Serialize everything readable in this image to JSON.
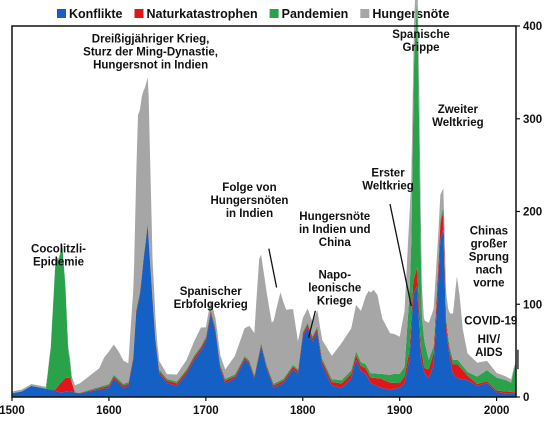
{
  "chart_data": {
    "type": "area",
    "stacked": true,
    "x_range": [
      1500,
      2020
    ],
    "y_range": [
      0,
      400
    ],
    "x_ticks": [
      "1500",
      "1600",
      "1700",
      "1800",
      "1900",
      "2000"
    ],
    "y_ticks": [
      "0",
      "100",
      "200",
      "300",
      "400"
    ],
    "legend_position": "top",
    "series": [
      {
        "name": "Konflikte",
        "color": "#1560c4",
        "points": [
          [
            1500,
            4
          ],
          [
            1510,
            6
          ],
          [
            1520,
            12
          ],
          [
            1530,
            10
          ],
          [
            1540,
            8
          ],
          [
            1550,
            5
          ],
          [
            1560,
            6
          ],
          [
            1570,
            4
          ],
          [
            1580,
            6
          ],
          [
            1590,
            8
          ],
          [
            1600,
            10
          ],
          [
            1605,
            20
          ],
          [
            1610,
            15
          ],
          [
            1615,
            10
          ],
          [
            1620,
            12
          ],
          [
            1625,
            40
          ],
          [
            1628,
            90
          ],
          [
            1632,
            110
          ],
          [
            1636,
            150
          ],
          [
            1640,
            185
          ],
          [
            1644,
            120
          ],
          [
            1648,
            60
          ],
          [
            1652,
            25
          ],
          [
            1660,
            15
          ],
          [
            1670,
            12
          ],
          [
            1680,
            25
          ],
          [
            1688,
            40
          ],
          [
            1695,
            50
          ],
          [
            1700,
            60
          ],
          [
            1705,
            90
          ],
          [
            1710,
            70
          ],
          [
            1715,
            30
          ],
          [
            1720,
            15
          ],
          [
            1730,
            20
          ],
          [
            1740,
            40
          ],
          [
            1745,
            35
          ],
          [
            1750,
            20
          ],
          [
            1757,
            55
          ],
          [
            1763,
            30
          ],
          [
            1770,
            10
          ],
          [
            1780,
            15
          ],
          [
            1790,
            30
          ],
          [
            1795,
            25
          ],
          [
            1800,
            65
          ],
          [
            1805,
            75
          ],
          [
            1810,
            60
          ],
          [
            1815,
            70
          ],
          [
            1820,
            35
          ],
          [
            1830,
            12
          ],
          [
            1840,
            10
          ],
          [
            1850,
            20
          ],
          [
            1855,
            40
          ],
          [
            1860,
            28
          ],
          [
            1865,
            25
          ],
          [
            1870,
            15
          ],
          [
            1880,
            10
          ],
          [
            1890,
            8
          ],
          [
            1900,
            10
          ],
          [
            1905,
            15
          ],
          [
            1910,
            40
          ],
          [
            1914,
            110
          ],
          [
            1918,
            120
          ],
          [
            1922,
            40
          ],
          [
            1926,
            25
          ],
          [
            1930,
            20
          ],
          [
            1935,
            35
          ],
          [
            1939,
            110
          ],
          [
            1942,
            170
          ],
          [
            1945,
            180
          ],
          [
            1948,
            70
          ],
          [
            1952,
            40
          ],
          [
            1955,
            25
          ],
          [
            1960,
            20
          ],
          [
            1970,
            18
          ],
          [
            1980,
            12
          ],
          [
            1990,
            15
          ],
          [
            2000,
            5
          ],
          [
            2010,
            4
          ],
          [
            2020,
            3
          ]
        ]
      },
      {
        "name": "Naturkatastrophen",
        "color": "#e0161b",
        "points": [
          [
            1500,
            0
          ],
          [
            1540,
            0
          ],
          [
            1545,
            2
          ],
          [
            1550,
            10
          ],
          [
            1555,
            15
          ],
          [
            1560,
            15
          ],
          [
            1565,
            0
          ],
          [
            1600,
            2
          ],
          [
            1700,
            3
          ],
          [
            1750,
            2
          ],
          [
            1800,
            3
          ],
          [
            1850,
            5
          ],
          [
            1870,
            6
          ],
          [
            1880,
            10
          ],
          [
            1900,
            5
          ],
          [
            1910,
            10
          ],
          [
            1918,
            20
          ],
          [
            1925,
            5
          ],
          [
            1930,
            10
          ],
          [
            1940,
            15
          ],
          [
            1945,
            20
          ],
          [
            1950,
            5
          ],
          [
            1960,
            15
          ],
          [
            1970,
            5
          ],
          [
            1980,
            2
          ],
          [
            2000,
            2
          ],
          [
            2020,
            2
          ]
        ]
      },
      {
        "name": "Pandemien",
        "color": "#2aa24a",
        "points": [
          [
            1500,
            0
          ],
          [
            1535,
            0
          ],
          [
            1540,
            45
          ],
          [
            1545,
            140
          ],
          [
            1548,
            135
          ],
          [
            1552,
            145
          ],
          [
            1555,
            100
          ],
          [
            1558,
            30
          ],
          [
            1562,
            0
          ],
          [
            1600,
            2
          ],
          [
            1650,
            2
          ],
          [
            1700,
            2
          ],
          [
            1800,
            2
          ],
          [
            1880,
            5
          ],
          [
            1895,
            10
          ],
          [
            1905,
            10
          ],
          [
            1912,
            80
          ],
          [
            1915,
            240
          ],
          [
            1918,
            290
          ],
          [
            1920,
            200
          ],
          [
            1923,
            40
          ],
          [
            1930,
            10
          ],
          [
            1940,
            5
          ],
          [
            1950,
            5
          ],
          [
            1960,
            5
          ],
          [
            1970,
            4
          ],
          [
            1980,
            8
          ],
          [
            1990,
            12
          ],
          [
            2000,
            14
          ],
          [
            2010,
            12
          ],
          [
            2015,
            10
          ],
          [
            2018,
            25
          ],
          [
            2020,
            28
          ]
        ]
      },
      {
        "name": "Hungersnöte",
        "color": "#a6a6a6",
        "points": [
          [
            1500,
            2
          ],
          [
            1550,
            2
          ],
          [
            1560,
            5
          ],
          [
            1570,
            10
          ],
          [
            1580,
            15
          ],
          [
            1590,
            20
          ],
          [
            1595,
            30
          ],
          [
            1600,
            35
          ],
          [
            1610,
            30
          ],
          [
            1620,
            20
          ],
          [
            1626,
            80
          ],
          [
            1630,
            200
          ],
          [
            1634,
            190
          ],
          [
            1637,
            170
          ],
          [
            1641,
            150
          ],
          [
            1645,
            40
          ],
          [
            1650,
            10
          ],
          [
            1660,
            5
          ],
          [
            1680,
            10
          ],
          [
            1695,
            20
          ],
          [
            1700,
            10
          ],
          [
            1720,
            10
          ],
          [
            1740,
            30
          ],
          [
            1750,
            45
          ],
          [
            1755,
            100
          ],
          [
            1762,
            80
          ],
          [
            1768,
            60
          ],
          [
            1773,
            80
          ],
          [
            1777,
            95
          ],
          [
            1783,
            70
          ],
          [
            1790,
            60
          ],
          [
            1795,
            30
          ],
          [
            1800,
            15
          ],
          [
            1810,
            15
          ],
          [
            1820,
            20
          ],
          [
            1830,
            25
          ],
          [
            1840,
            40
          ],
          [
            1850,
            45
          ],
          [
            1860,
            55
          ],
          [
            1868,
            85
          ],
          [
            1873,
            90
          ],
          [
            1877,
            85
          ],
          [
            1882,
            60
          ],
          [
            1890,
            45
          ],
          [
            1900,
            40
          ],
          [
            1905,
            60
          ],
          [
            1910,
            85
          ],
          [
            1915,
            40
          ],
          [
            1920,
            50
          ],
          [
            1925,
            20
          ],
          [
            1930,
            40
          ],
          [
            1935,
            40
          ],
          [
            1940,
            30
          ],
          [
            1945,
            20
          ],
          [
            1950,
            30
          ],
          [
            1955,
            50
          ],
          [
            1959,
            90
          ],
          [
            1962,
            70
          ],
          [
            1965,
            40
          ],
          [
            1970,
            20
          ],
          [
            1980,
            15
          ],
          [
            1990,
            10
          ],
          [
            2000,
            5
          ],
          [
            2020,
            3
          ]
        ]
      }
    ],
    "annotations": [
      {
        "lines": [
          "Cocolitzli-",
          "Epidemie"
        ],
        "x": 1548,
        "y": 156
      },
      {
        "lines": [
          "Dreißigjähriger Krieg,",
          "Sturz der Ming-Dynastie,",
          "Hungersnot in Indien"
        ],
        "x": 1643,
        "y": 382
      },
      {
        "lines": [
          "Spanischer",
          "Erbfolgekrieg"
        ],
        "x": 1705,
        "y": 110
      },
      {
        "lines": [
          "Folge von",
          "Hungersnöten",
          "in Indien"
        ],
        "x": 1745,
        "y": 222
      },
      {
        "lines": [
          "Hungersnöte",
          "in Indien und",
          "China"
        ],
        "x": 1833,
        "y": 191
      },
      {
        "lines": [
          "Napo-",
          "leonische",
          "Kriege"
        ],
        "x": 1833,
        "y": 128
      },
      {
        "lines": [
          "Erster",
          "Weltkrieg"
        ],
        "x": 1888,
        "y": 238
      },
      {
        "lines": [
          "Spanische",
          "Grippe"
        ],
        "x": 1922,
        "y": 387
      },
      {
        "lines": [
          "Zweiter",
          "Weltkrieg"
        ],
        "x": 1960,
        "y": 306
      },
      {
        "lines": [
          "Chinas",
          "großer",
          "Sprung",
          "nach",
          "vorne"
        ],
        "x": 1992,
        "y": 175
      },
      {
        "lines": [
          "COVID-19"
        ],
        "x": 1994,
        "y": 78
      },
      {
        "lines": [
          "HIV/",
          "AIDS"
        ],
        "x": 1992,
        "y": 58
      }
    ]
  }
}
